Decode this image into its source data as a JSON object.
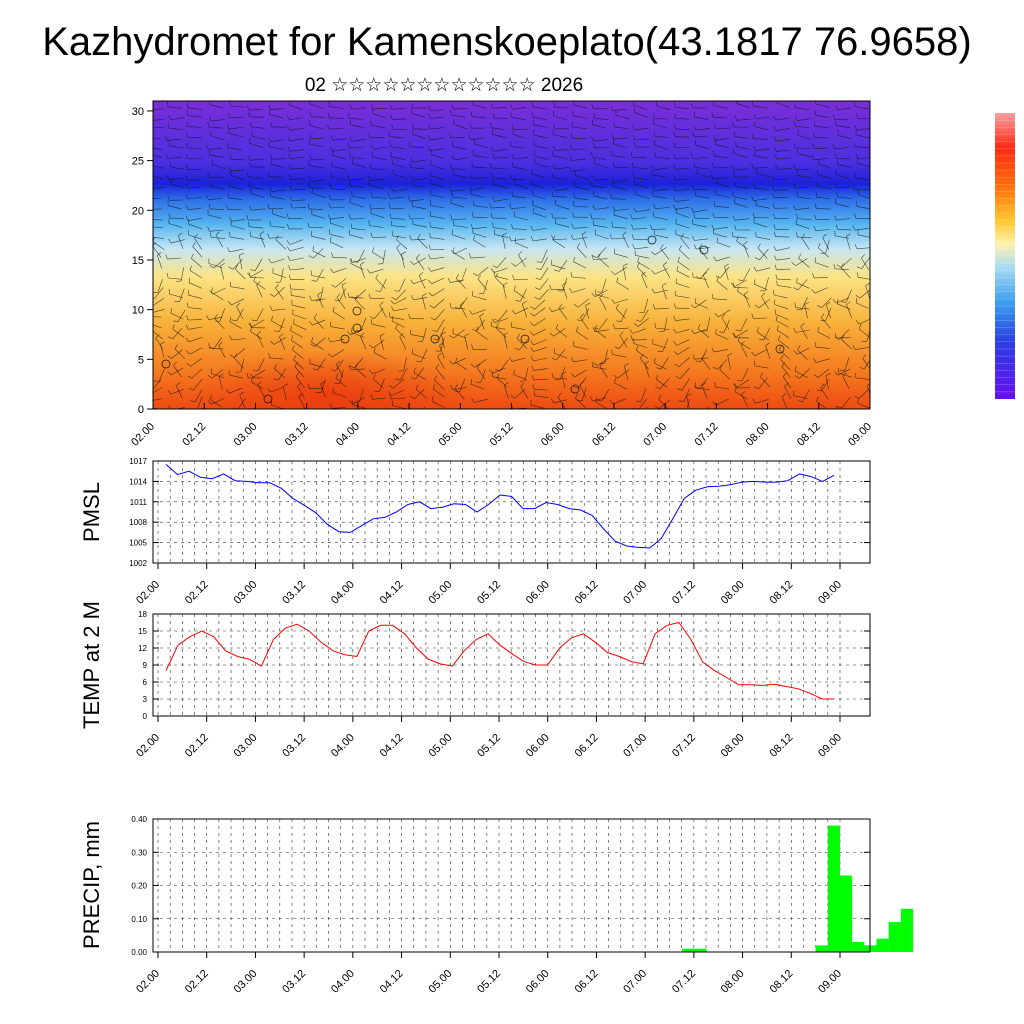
{
  "title": "Kazhydromet for Kamenskoeplato(43.1817 76.9658)",
  "subtitle": "02 ☆☆☆☆☆☆☆☆☆☆☆☆ 2026",
  "x_ticks": [
    "02.00",
    "02.12",
    "03.00",
    "03.12",
    "04.00",
    "04.12",
    "05.00",
    "05.12",
    "06.00",
    "06.12",
    "07.00",
    "07.12",
    "08.00",
    "08.12",
    "09.00"
  ],
  "colors": {
    "pmsl_line": "#0000ff",
    "temp_line": "#ff0000",
    "precip_bar": "#00ff00"
  },
  "chart_data": [
    {
      "type": "heatmap",
      "name": "",
      "x_ticks": [
        "02.00",
        "02.12",
        "03.00",
        "03.12",
        "04.00",
        "04.12",
        "05.00",
        "05.12",
        "06.00",
        "06.12",
        "07.00",
        "07.12",
        "08.00",
        "08.12",
        "09.00"
      ],
      "y_ticks": [
        "0",
        "5",
        "10",
        "15",
        "20",
        "25",
        "30"
      ],
      "ylim": [
        0,
        31
      ],
      "overlay": "wind barbs",
      "colorbar": "rainbow"
    },
    {
      "type": "line",
      "ylabel": "PMSL",
      "y_ticks": [
        "1002",
        "1005",
        "1008",
        "1011",
        "1014",
        "1017"
      ],
      "ylim": [
        1002,
        1017
      ],
      "grid": true,
      "values": [
        1016.5,
        1015,
        1015.5,
        1014.6,
        1014.4,
        1015.1,
        1014.1,
        1014.0,
        1013.8,
        1013.8,
        1013.0,
        1011.5,
        1010.5,
        1009.4,
        1007.7,
        1006.6,
        1006.5,
        1007.5,
        1008.5,
        1008.7,
        1009.5,
        1010.6,
        1011.0,
        1010.0,
        1010.2,
        1010.7,
        1010.6,
        1009.5,
        1010.6,
        1012.0,
        1011.8,
        1010.0,
        1010.0,
        1010.9,
        1010.6,
        1010.0,
        1009.8,
        1009.0,
        1007.0,
        1005.2,
        1004.5,
        1004.3,
        1004.2,
        1005.6,
        1008.5,
        1011.5,
        1012.7,
        1013.2,
        1013.3,
        1013.5,
        1013.9,
        1014.0,
        1013.9,
        1013.9,
        1014.1,
        1015.1,
        1014.7,
        1014.0,
        1014.9
      ]
    },
    {
      "type": "line",
      "ylabel": "TEMP at 2 M",
      "y_ticks": [
        "0",
        "3",
        "6",
        "9",
        "12",
        "15",
        "18"
      ],
      "ylim": [
        0,
        18
      ],
      "grid": true,
      "values": [
        8.0,
        12.5,
        14.0,
        15.0,
        14.0,
        11.5,
        10.5,
        10.0,
        8.8,
        13.5,
        15.5,
        16.2,
        15.0,
        13.0,
        11.5,
        10.8,
        10.5,
        15.0,
        16.0,
        16.0,
        14.5,
        12.0,
        10.0,
        9.2,
        8.8,
        11.5,
        13.5,
        14.5,
        12.5,
        11.0,
        9.6,
        9.0,
        9.0,
        12.0,
        13.8,
        14.5,
        13.0,
        11.2,
        10.5,
        9.6,
        9.2,
        14.5,
        16.0,
        16.5,
        13.5,
        9.5,
        8.0,
        6.8,
        5.5,
        5.5,
        5.4,
        5.6,
        5.2,
        4.8,
        4.0,
        3.0,
        3.0
      ]
    },
    {
      "type": "bar",
      "ylabel": "PRECIP, mm",
      "y_ticks": [
        "0.00",
        "0.10",
        "0.20",
        "0.30",
        "0.40"
      ],
      "ylim": [
        0,
        0.4
      ],
      "grid": true,
      "bars": [
        {
          "start": 5.38,
          "end": 5.63,
          "value": 0.01
        },
        {
          "start": 6.75,
          "end": 6.875,
          "value": 0.02
        },
        {
          "start": 6.875,
          "end": 7.0,
          "value": 0.38
        },
        {
          "start": 7.0,
          "end": 7.125,
          "value": 0.23
        },
        {
          "start": 7.125,
          "end": 7.25,
          "value": 0.03
        },
        {
          "start": 7.25,
          "end": 7.375,
          "value": 0.02
        },
        {
          "start": 7.375,
          "end": 7.5,
          "value": 0.04
        },
        {
          "start": 7.5,
          "end": 7.625,
          "value": 0.09
        },
        {
          "start": 7.625,
          "end": 7.75,
          "value": 0.13
        }
      ]
    }
  ]
}
